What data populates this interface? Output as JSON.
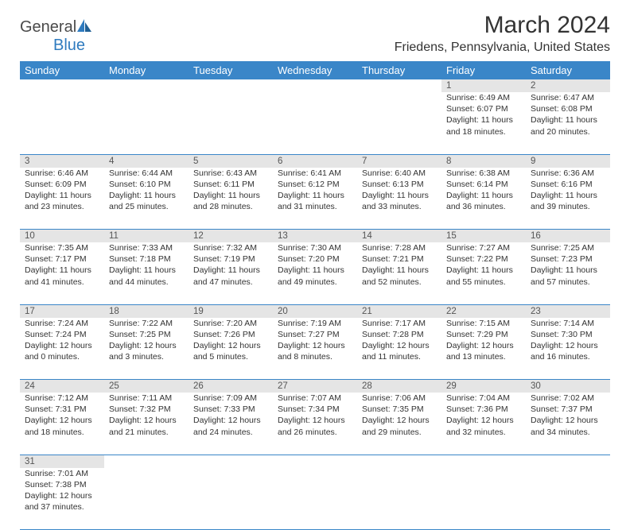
{
  "logo": {
    "part1": "General",
    "part2": "Blue"
  },
  "title": "March 2024",
  "location": "Friedens, Pennsylvania, United States",
  "colors": {
    "header_bg": "#3a86c8",
    "header_text": "#ffffff",
    "daynum_bg": "#e5e5e5",
    "daynum_text": "#555555",
    "body_text": "#333333",
    "rule": "#3a86c8",
    "logo_gray": "#4a4a4a",
    "logo_blue": "#2f7bbf"
  },
  "dayNames": [
    "Sunday",
    "Monday",
    "Tuesday",
    "Wednesday",
    "Thursday",
    "Friday",
    "Saturday"
  ],
  "weeks": [
    [
      null,
      null,
      null,
      null,
      null,
      {
        "n": "1",
        "sr": "Sunrise: 6:49 AM",
        "ss": "Sunset: 6:07 PM",
        "dl1": "Daylight: 11 hours",
        "dl2": "and 18 minutes."
      },
      {
        "n": "2",
        "sr": "Sunrise: 6:47 AM",
        "ss": "Sunset: 6:08 PM",
        "dl1": "Daylight: 11 hours",
        "dl2": "and 20 minutes."
      }
    ],
    [
      {
        "n": "3",
        "sr": "Sunrise: 6:46 AM",
        "ss": "Sunset: 6:09 PM",
        "dl1": "Daylight: 11 hours",
        "dl2": "and 23 minutes."
      },
      {
        "n": "4",
        "sr": "Sunrise: 6:44 AM",
        "ss": "Sunset: 6:10 PM",
        "dl1": "Daylight: 11 hours",
        "dl2": "and 25 minutes."
      },
      {
        "n": "5",
        "sr": "Sunrise: 6:43 AM",
        "ss": "Sunset: 6:11 PM",
        "dl1": "Daylight: 11 hours",
        "dl2": "and 28 minutes."
      },
      {
        "n": "6",
        "sr": "Sunrise: 6:41 AM",
        "ss": "Sunset: 6:12 PM",
        "dl1": "Daylight: 11 hours",
        "dl2": "and 31 minutes."
      },
      {
        "n": "7",
        "sr": "Sunrise: 6:40 AM",
        "ss": "Sunset: 6:13 PM",
        "dl1": "Daylight: 11 hours",
        "dl2": "and 33 minutes."
      },
      {
        "n": "8",
        "sr": "Sunrise: 6:38 AM",
        "ss": "Sunset: 6:14 PM",
        "dl1": "Daylight: 11 hours",
        "dl2": "and 36 minutes."
      },
      {
        "n": "9",
        "sr": "Sunrise: 6:36 AM",
        "ss": "Sunset: 6:16 PM",
        "dl1": "Daylight: 11 hours",
        "dl2": "and 39 minutes."
      }
    ],
    [
      {
        "n": "10",
        "sr": "Sunrise: 7:35 AM",
        "ss": "Sunset: 7:17 PM",
        "dl1": "Daylight: 11 hours",
        "dl2": "and 41 minutes."
      },
      {
        "n": "11",
        "sr": "Sunrise: 7:33 AM",
        "ss": "Sunset: 7:18 PM",
        "dl1": "Daylight: 11 hours",
        "dl2": "and 44 minutes."
      },
      {
        "n": "12",
        "sr": "Sunrise: 7:32 AM",
        "ss": "Sunset: 7:19 PM",
        "dl1": "Daylight: 11 hours",
        "dl2": "and 47 minutes."
      },
      {
        "n": "13",
        "sr": "Sunrise: 7:30 AM",
        "ss": "Sunset: 7:20 PM",
        "dl1": "Daylight: 11 hours",
        "dl2": "and 49 minutes."
      },
      {
        "n": "14",
        "sr": "Sunrise: 7:28 AM",
        "ss": "Sunset: 7:21 PM",
        "dl1": "Daylight: 11 hours",
        "dl2": "and 52 minutes."
      },
      {
        "n": "15",
        "sr": "Sunrise: 7:27 AM",
        "ss": "Sunset: 7:22 PM",
        "dl1": "Daylight: 11 hours",
        "dl2": "and 55 minutes."
      },
      {
        "n": "16",
        "sr": "Sunrise: 7:25 AM",
        "ss": "Sunset: 7:23 PM",
        "dl1": "Daylight: 11 hours",
        "dl2": "and 57 minutes."
      }
    ],
    [
      {
        "n": "17",
        "sr": "Sunrise: 7:24 AM",
        "ss": "Sunset: 7:24 PM",
        "dl1": "Daylight: 12 hours",
        "dl2": "and 0 minutes."
      },
      {
        "n": "18",
        "sr": "Sunrise: 7:22 AM",
        "ss": "Sunset: 7:25 PM",
        "dl1": "Daylight: 12 hours",
        "dl2": "and 3 minutes."
      },
      {
        "n": "19",
        "sr": "Sunrise: 7:20 AM",
        "ss": "Sunset: 7:26 PM",
        "dl1": "Daylight: 12 hours",
        "dl2": "and 5 minutes."
      },
      {
        "n": "20",
        "sr": "Sunrise: 7:19 AM",
        "ss": "Sunset: 7:27 PM",
        "dl1": "Daylight: 12 hours",
        "dl2": "and 8 minutes."
      },
      {
        "n": "21",
        "sr": "Sunrise: 7:17 AM",
        "ss": "Sunset: 7:28 PM",
        "dl1": "Daylight: 12 hours",
        "dl2": "and 11 minutes."
      },
      {
        "n": "22",
        "sr": "Sunrise: 7:15 AM",
        "ss": "Sunset: 7:29 PM",
        "dl1": "Daylight: 12 hours",
        "dl2": "and 13 minutes."
      },
      {
        "n": "23",
        "sr": "Sunrise: 7:14 AM",
        "ss": "Sunset: 7:30 PM",
        "dl1": "Daylight: 12 hours",
        "dl2": "and 16 minutes."
      }
    ],
    [
      {
        "n": "24",
        "sr": "Sunrise: 7:12 AM",
        "ss": "Sunset: 7:31 PM",
        "dl1": "Daylight: 12 hours",
        "dl2": "and 18 minutes."
      },
      {
        "n": "25",
        "sr": "Sunrise: 7:11 AM",
        "ss": "Sunset: 7:32 PM",
        "dl1": "Daylight: 12 hours",
        "dl2": "and 21 minutes."
      },
      {
        "n": "26",
        "sr": "Sunrise: 7:09 AM",
        "ss": "Sunset: 7:33 PM",
        "dl1": "Daylight: 12 hours",
        "dl2": "and 24 minutes."
      },
      {
        "n": "27",
        "sr": "Sunrise: 7:07 AM",
        "ss": "Sunset: 7:34 PM",
        "dl1": "Daylight: 12 hours",
        "dl2": "and 26 minutes."
      },
      {
        "n": "28",
        "sr": "Sunrise: 7:06 AM",
        "ss": "Sunset: 7:35 PM",
        "dl1": "Daylight: 12 hours",
        "dl2": "and 29 minutes."
      },
      {
        "n": "29",
        "sr": "Sunrise: 7:04 AM",
        "ss": "Sunset: 7:36 PM",
        "dl1": "Daylight: 12 hours",
        "dl2": "and 32 minutes."
      },
      {
        "n": "30",
        "sr": "Sunrise: 7:02 AM",
        "ss": "Sunset: 7:37 PM",
        "dl1": "Daylight: 12 hours",
        "dl2": "and 34 minutes."
      }
    ],
    [
      {
        "n": "31",
        "sr": "Sunrise: 7:01 AM",
        "ss": "Sunset: 7:38 PM",
        "dl1": "Daylight: 12 hours",
        "dl2": "and 37 minutes."
      },
      null,
      null,
      null,
      null,
      null,
      null
    ]
  ]
}
